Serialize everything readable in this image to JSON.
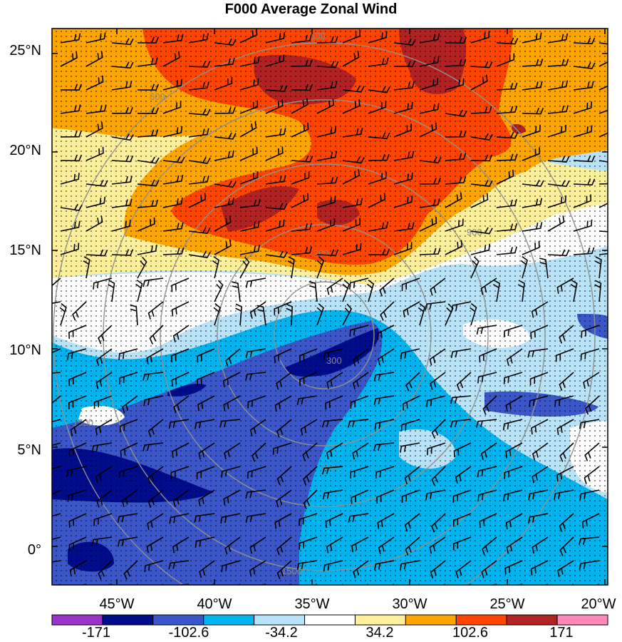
{
  "title": "F000 Average Zonal Wind",
  "lat_labels": [
    "25°N",
    "20°N",
    "15°N",
    "10°N",
    "5°N",
    "0°"
  ],
  "lon_labels": [
    "45°W",
    "40°W",
    "35°W",
    "30°W",
    "25°W",
    "20°W"
  ],
  "colorbar": {
    "colors": [
      "#9933cc",
      "#000c8c",
      "#3a56c8",
      "#00b4f0",
      "#b8e2f8",
      "#ffffff",
      "#fef09a",
      "#ffa500",
      "#ff4500",
      "#b22222",
      "#ff88bb"
    ],
    "labels": [
      "-171",
      "-102.6",
      "-34.2",
      "34.2",
      "102.6",
      "171"
    ]
  },
  "contour_labels": [
    "300",
    "600",
    "900",
    "1500"
  ],
  "legend_range": "-171 to 171"
}
